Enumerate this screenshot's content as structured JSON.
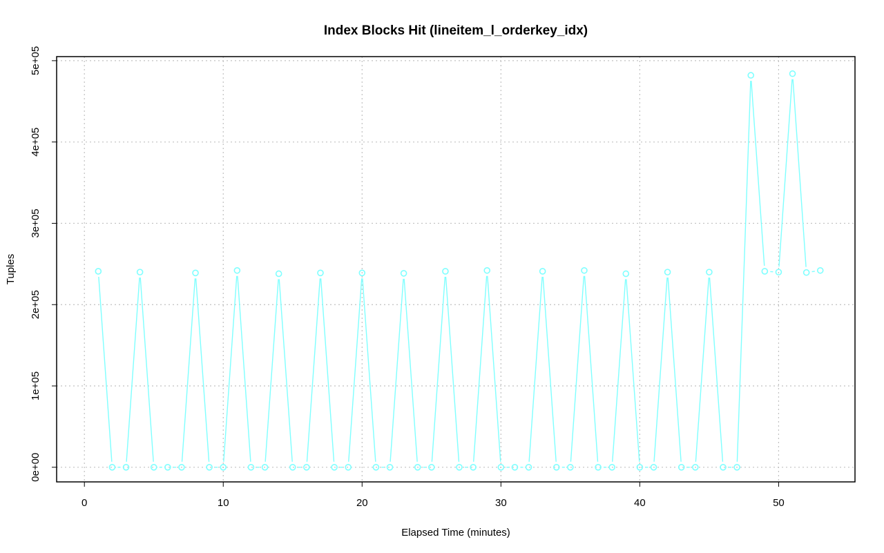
{
  "chart_data": {
    "type": "line",
    "title": "Index Blocks Hit (lineitem_l_orderkey_idx)",
    "xlabel": "Elapsed Time (minutes)",
    "ylabel": "Tuples",
    "xlim": [
      -2,
      55.5
    ],
    "ylim": [
      -18000,
      505000
    ],
    "x_ticks": [
      0,
      10,
      20,
      30,
      40,
      50
    ],
    "x_tick_labels": [
      "0",
      "10",
      "20",
      "30",
      "40",
      "50"
    ],
    "y_ticks": [
      0,
      100000,
      200000,
      300000,
      400000,
      500000
    ],
    "y_tick_labels": [
      "0e+00",
      "1e+05",
      "2e+05",
      "3e+05",
      "4e+05",
      "5e+05"
    ],
    "grid": true,
    "series": [
      {
        "color": "#7fffff",
        "x": [
          1,
          2,
          3,
          4,
          5,
          6,
          7,
          8,
          9,
          10,
          11,
          12,
          13,
          14,
          15,
          16,
          17,
          18,
          19,
          20,
          21,
          22,
          23,
          24,
          25,
          26,
          27,
          28,
          29,
          30,
          31,
          32,
          33,
          34,
          35,
          36,
          37,
          38,
          39,
          40,
          41,
          42,
          43,
          44,
          45,
          46,
          47,
          48,
          49,
          50,
          51,
          52,
          53
        ],
        "y": [
          241000,
          0,
          0,
          240000,
          0,
          0,
          0,
          239000,
          0,
          0,
          242000,
          0,
          0,
          238000,
          0,
          0,
          239000,
          0,
          0,
          239000,
          0,
          0,
          238500,
          0,
          0,
          241000,
          0,
          0,
          242000,
          0,
          0,
          0,
          241000,
          0,
          0,
          242000,
          0,
          0,
          238000,
          0,
          0,
          240000,
          0,
          0,
          240000,
          0,
          0,
          482000,
          241000,
          240000,
          484000,
          239500,
          242000
        ]
      }
    ]
  }
}
